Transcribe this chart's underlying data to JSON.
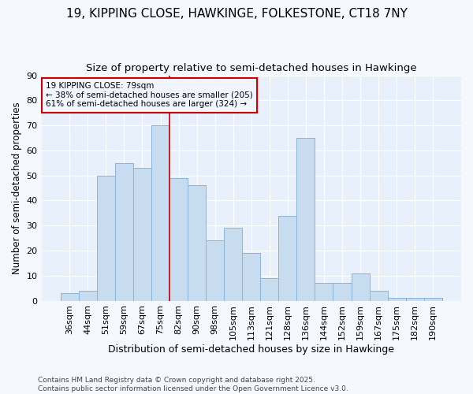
{
  "title": "19, KIPPING CLOSE, HAWKINGE, FOLKESTONE, CT18 7NY",
  "subtitle": "Size of property relative to semi-detached houses in Hawkinge",
  "xlabel": "Distribution of semi-detached houses by size in Hawkinge",
  "ylabel": "Number of semi-detached properties",
  "categories": [
    "36sqm",
    "44sqm",
    "51sqm",
    "59sqm",
    "67sqm",
    "75sqm",
    "82sqm",
    "90sqm",
    "98sqm",
    "105sqm",
    "113sqm",
    "121sqm",
    "128sqm",
    "136sqm",
    "144sqm",
    "152sqm",
    "159sqm",
    "167sqm",
    "175sqm",
    "182sqm",
    "190sqm"
  ],
  "values": [
    3,
    4,
    50,
    55,
    53,
    70,
    49,
    46,
    24,
    29,
    19,
    9,
    34,
    65,
    7,
    7,
    11,
    4,
    1,
    1,
    1
  ],
  "bar_color": "#c8dcf0",
  "bar_edge_color": "#8ab4d8",
  "bg_color": "#f5f8ff",
  "plot_bg_color": "#e8f0fc",
  "grid_color": "#ffffff",
  "ref_line_color": "#cc0000",
  "annotation_text": "19 KIPPING CLOSE: 79sqm\n← 38% of semi-detached houses are smaller (205)\n61% of semi-detached houses are larger (324) →",
  "annotation_box_facecolor": "#f0f5ff",
  "annotation_box_edgecolor": "#cc0000",
  "ylim": [
    0,
    90
  ],
  "yticks": [
    0,
    10,
    20,
    30,
    40,
    50,
    60,
    70,
    80,
    90
  ],
  "footer": "Contains HM Land Registry data © Crown copyright and database right 2025.\nContains public sector information licensed under the Open Government Licence v3.0.",
  "title_fontsize": 11,
  "subtitle_fontsize": 9.5,
  "tick_fontsize": 8,
  "ylabel_fontsize": 8.5,
  "xlabel_fontsize": 9,
  "footer_fontsize": 6.5
}
